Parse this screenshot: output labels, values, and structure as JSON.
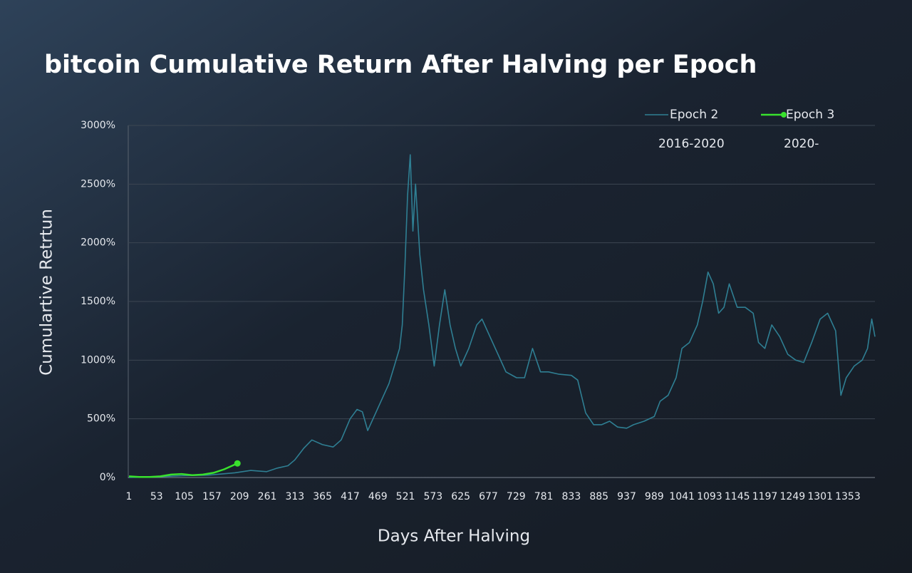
{
  "chart_data": {
    "type": "line",
    "title": "bitcoin Cumulative Return After Halving per Epoch",
    "x_label": "Days After Halving",
    "y_label": "Cumulartive Retrtun",
    "xlim": [
      1,
      1404
    ],
    "ylim": [
      0,
      3000
    ],
    "xticks": [
      1,
      53,
      105,
      157,
      209,
      261,
      313,
      365,
      417,
      469,
      521,
      573,
      625,
      677,
      729,
      781,
      833,
      885,
      937,
      989,
      1041,
      1093,
      1145,
      1197,
      1249,
      1301,
      1353
    ],
    "yticks": [
      {
        "value": 0,
        "label": "0%"
      },
      {
        "value": 500,
        "label": "500%"
      },
      {
        "value": 1000,
        "label": "1000%"
      },
      {
        "value": 1500,
        "label": "1500%"
      },
      {
        "value": 2000,
        "label": "2000%"
      },
      {
        "value": 2500,
        "label": "2500%"
      },
      {
        "value": 3000,
        "label": "3000%"
      }
    ],
    "grid": true,
    "legend": "top-right",
    "series": [
      {
        "name": "Epoch 2",
        "period": "2016-2020",
        "color": "#2f7f93",
        "x": [
          1,
          50,
          100,
          150,
          200,
          230,
          260,
          280,
          300,
          313,
          330,
          345,
          365,
          385,
          400,
          417,
          430,
          440,
          450,
          465,
          480,
          490,
          500,
          510,
          515,
          520,
          525,
          530,
          535,
          540,
          548,
          555,
          565,
          575,
          585,
          595,
          605,
          615,
          625,
          640,
          655,
          665,
          680,
          695,
          710,
          730,
          745,
          760,
          775,
          790,
          810,
          833,
          845,
          860,
          875,
          890,
          905,
          920,
          937,
          950,
          970,
          989,
          1000,
          1015,
          1030,
          1041,
          1055,
          1070,
          1080,
          1090,
          1100,
          1110,
          1120,
          1130,
          1145,
          1160,
          1175,
          1185,
          1197,
          1210,
          1225,
          1240,
          1255,
          1270,
          1285,
          1301,
          1315,
          1330,
          1340,
          1350,
          1365,
          1380,
          1390,
          1398,
          1404
        ],
        "values": [
          0,
          5,
          15,
          20,
          40,
          60,
          50,
          80,
          100,
          150,
          250,
          320,
          280,
          260,
          320,
          500,
          580,
          560,
          400,
          550,
          700,
          800,
          950,
          1100,
          1300,
          1800,
          2400,
          2750,
          2100,
          2500,
          1900,
          1600,
          1300,
          950,
          1300,
          1600,
          1300,
          1100,
          950,
          1100,
          1300,
          1350,
          1200,
          1050,
          900,
          850,
          850,
          1100,
          900,
          900,
          880,
          870,
          830,
          550,
          450,
          450,
          480,
          430,
          420,
          450,
          480,
          520,
          650,
          700,
          850,
          1100,
          1150,
          1300,
          1500,
          1750,
          1650,
          1400,
          1450,
          1650,
          1450,
          1450,
          1400,
          1150,
          1100,
          1300,
          1200,
          1050,
          1000,
          980,
          1150,
          1350,
          1400,
          1250,
          700,
          850,
          950,
          1000,
          1100,
          1350,
          1200
        ]
      },
      {
        "name": "Epoch 3",
        "period": "2020-",
        "color": "#39e22d",
        "x": [
          1,
          20,
          40,
          60,
          80,
          100,
          120,
          140,
          160,
          180,
          195,
          205
        ],
        "values": [
          10,
          5,
          5,
          10,
          25,
          30,
          20,
          25,
          40,
          70,
          100,
          120
        ]
      }
    ]
  }
}
